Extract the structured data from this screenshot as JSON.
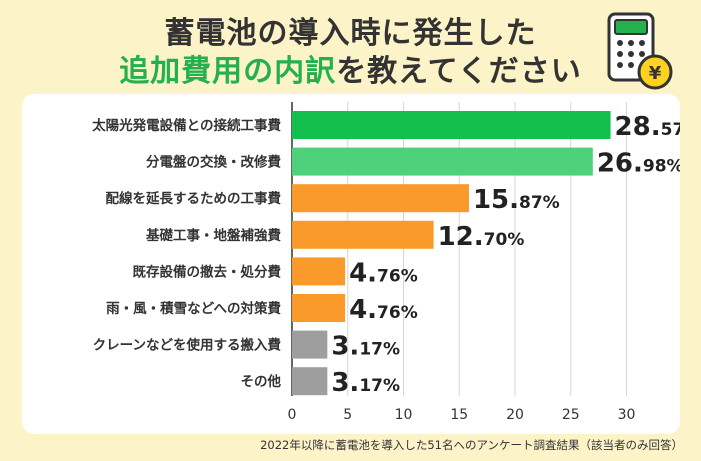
{
  "title": {
    "line1": "蓄電池の導入時に発生した",
    "line2_highlight": "追加費用の内訳",
    "line2_rest": "を教えてください"
  },
  "icon": "calculator-yen-icon",
  "icon_symbol": "¥",
  "footnote": "2022年以降に蓄電池を導入した51名へのアンケート調査結果（該当者のみ回答）",
  "chart_data": {
    "type": "bar",
    "orientation": "horizontal",
    "categories": [
      "太陽光発電設備との接続工事費",
      "分電盤の交換・改修費",
      "配線を延長するための工事費",
      "基礎工事・地盤補強費",
      "既存設備の撤去・処分費",
      "雨・風・積雪などへの対策費",
      "クレーンなどを使用する搬入費",
      "その他"
    ],
    "values": [
      28.57,
      26.98,
      15.87,
      12.7,
      4.76,
      4.76,
      3.17,
      3.17
    ],
    "labels": [
      {
        "int": "28.",
        "dec": "57%"
      },
      {
        "int": "26.",
        "dec": "98%"
      },
      {
        "int": "15.",
        "dec": "87%"
      },
      {
        "int": "12.",
        "dec": "70%"
      },
      {
        "int": "4.",
        "dec": "76%"
      },
      {
        "int": "4.",
        "dec": "76%"
      },
      {
        "int": "3.",
        "dec": "17%"
      },
      {
        "int": "3.",
        "dec": "17%"
      }
    ],
    "colors": [
      "#13c04d",
      "#4fd17c",
      "#fa9a2a",
      "#fa9a2a",
      "#fa9a2a",
      "#fa9a2a",
      "#9e9e9e",
      "#9e9e9e"
    ],
    "xlim": [
      0,
      30
    ],
    "xticks": [
      "0",
      "5",
      "10",
      "15",
      "20",
      "25",
      "30"
    ],
    "grid": true
  }
}
